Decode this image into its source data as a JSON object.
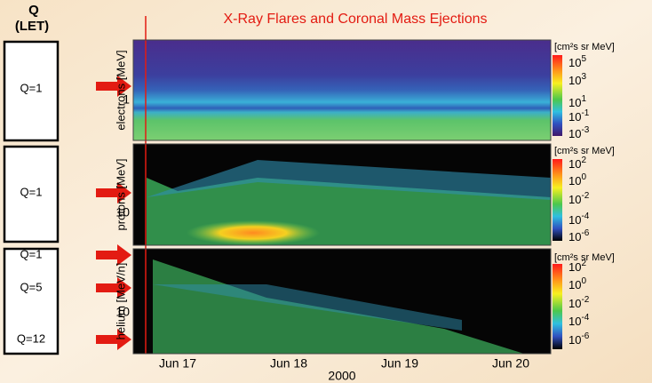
{
  "header": {
    "left_title": "Q",
    "left_subtitle": "(LET)",
    "title": "X-Ray Flares and Coronal Mass Ejections"
  },
  "panels": [
    {
      "q_labels": [
        "Q=1"
      ],
      "axis_label": "electrons [MeV]",
      "tick": "1",
      "colorbar": {
        "unit": "[cm²s  sr MeV]",
        "base": "10",
        "exponents": [
          "5",
          "3",
          "1",
          "-1",
          "-3"
        ]
      }
    },
    {
      "q_labels": [
        "Q=1"
      ],
      "axis_label": "protons [MeV]",
      "tick": "10",
      "colorbar": {
        "unit": "[cm²s  sr MeV]",
        "base": "10",
        "exponents": [
          "2",
          "0",
          "-2",
          "-4",
          "-6"
        ]
      }
    },
    {
      "q_labels": [
        "Q=1",
        "Q=5",
        "Q=12"
      ],
      "axis_label": "helium [MeV/n]",
      "tick": "10",
      "colorbar": {
        "unit": "[cm²s  sr MeV]",
        "base": "10",
        "exponents": [
          "2",
          "0",
          "-2",
          "-4",
          "-6"
        ]
      }
    }
  ],
  "x_axis": {
    "ticks": [
      "Jun 17",
      "Jun 18",
      "Jun 19",
      "Jun 20"
    ],
    "label": "2000"
  }
}
